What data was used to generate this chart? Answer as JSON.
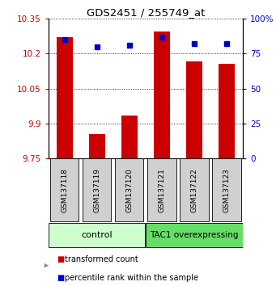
{
  "title": "GDS2451 / 255749_at",
  "samples": [
    "GSM137118",
    "GSM137119",
    "GSM137120",
    "GSM137121",
    "GSM137122",
    "GSM137123"
  ],
  "transformed_counts": [
    10.27,
    9.855,
    9.935,
    10.295,
    10.165,
    10.155
  ],
  "percentile_ranks": [
    85,
    80,
    81,
    87,
    82,
    82
  ],
  "ylim_left": [
    9.75,
    10.35
  ],
  "ylim_right": [
    0,
    100
  ],
  "yticks_left": [
    9.75,
    9.9,
    10.05,
    10.2,
    10.35
  ],
  "yticks_right": [
    0,
    25,
    50,
    75,
    100
  ],
  "ytick_labels_left": [
    "9.75",
    "9.9",
    "10.05",
    "10.2",
    "10.35"
  ],
  "ytick_labels_right": [
    "0",
    "25",
    "50",
    "75",
    "100%"
  ],
  "bar_color": "#cc0000",
  "dot_color": "#0000cc",
  "bar_bottom": 9.75,
  "control_color": "#ccffcc",
  "tac1_color": "#66dd66",
  "sample_box_color": "#d0d0d0",
  "background_color": "#ffffff"
}
